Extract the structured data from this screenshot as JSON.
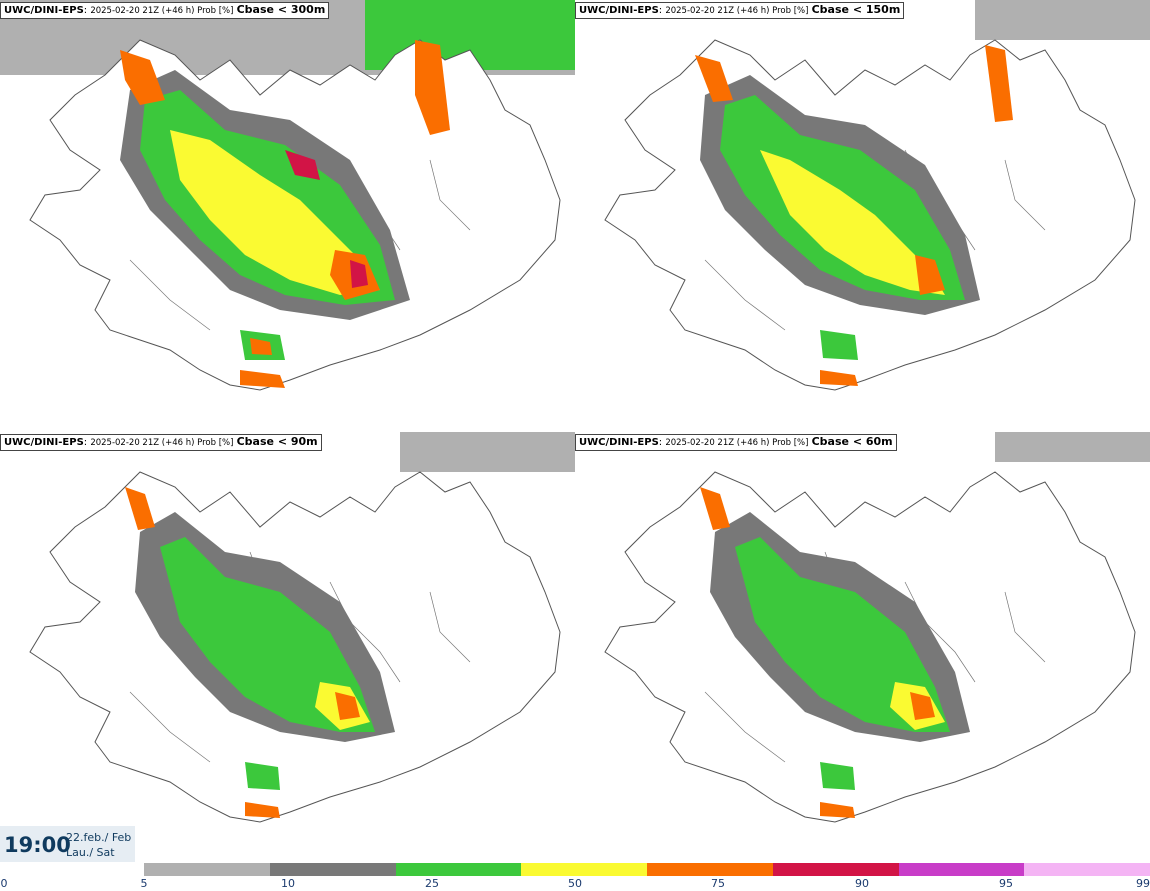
{
  "panels": [
    {
      "model": "UWC/DINI-EPS",
      "run": "2025-02-20 21Z (+46 h) Prob [%]",
      "variable": "Cbase < 300m"
    },
    {
      "model": "UWC/DINI-EPS",
      "run": "2025-02-20 21Z (+46 h) Prob [%]",
      "variable": "Cbase < 150m"
    },
    {
      "model": "UWC/DINI-EPS",
      "run": "2025-02-20 21Z (+46 h) Prob [%]",
      "variable": "Cbase < 90m"
    },
    {
      "model": "UWC/DINI-EPS",
      "run": "2025-02-20 21Z (+46 h) Prob [%]",
      "variable": "Cbase < 60m"
    }
  ],
  "valid_time": {
    "time": "19:00",
    "date_line1": "22.feb./ Feb",
    "date_line2": "Lau./ Sat"
  },
  "colorbar": {
    "ticks": [
      "0",
      "5",
      "10",
      "25",
      "50",
      "75",
      "90",
      "95",
      "99"
    ],
    "colors": [
      "#b0b0b0",
      "#787878",
      "#3cc83c",
      "#fafa32",
      "#fa6e00",
      "#d21446",
      "#c83cc8",
      "#f4b4f4"
    ]
  }
}
